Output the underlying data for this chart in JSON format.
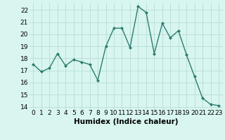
{
  "x": [
    0,
    1,
    2,
    3,
    4,
    5,
    6,
    7,
    8,
    9,
    10,
    11,
    12,
    13,
    14,
    15,
    16,
    17,
    18,
    19,
    20,
    21,
    22,
    23
  ],
  "y": [
    17.5,
    16.9,
    17.2,
    18.4,
    17.4,
    17.9,
    17.7,
    17.5,
    16.2,
    19.0,
    20.5,
    20.5,
    18.9,
    22.3,
    21.8,
    18.4,
    20.9,
    19.7,
    20.3,
    18.3,
    16.5,
    14.7,
    14.2,
    14.1
  ],
  "line_color": "#2e7d6e",
  "marker": "D",
  "marker_size": 2.0,
  "bg_color": "#d8f5f0",
  "grid_color": "#b8ddd8",
  "xlabel": "Humidex (Indice chaleur)",
  "xlim": [
    -0.5,
    23.5
  ],
  "ylim": [
    13.8,
    22.6
  ],
  "yticks": [
    14,
    15,
    16,
    17,
    18,
    19,
    20,
    21,
    22
  ],
  "xticks": [
    0,
    1,
    2,
    3,
    4,
    5,
    6,
    7,
    8,
    9,
    10,
    11,
    12,
    13,
    14,
    15,
    16,
    17,
    18,
    19,
    20,
    21,
    22,
    23
  ],
  "xlabel_fontsize": 7.5,
  "tick_fontsize": 6.5,
  "line_width": 1.0
}
